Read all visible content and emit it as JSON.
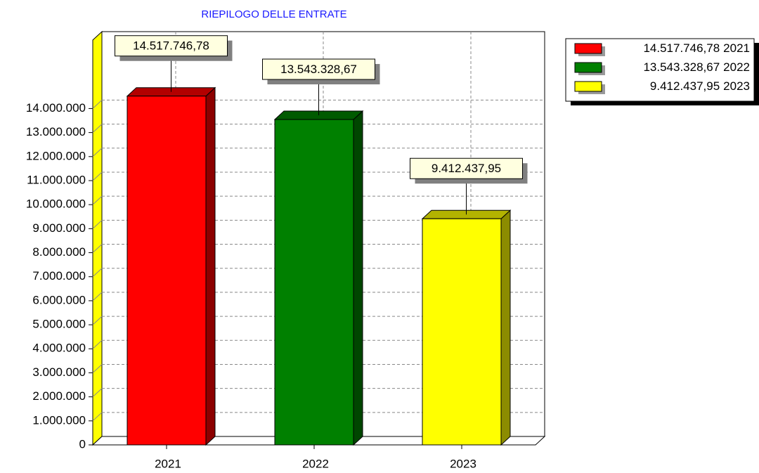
{
  "chart_data": {
    "type": "bar",
    "title": "RIEPILOGO DELLE ENTRATE",
    "categories": [
      "2021",
      "2022",
      "2023"
    ],
    "values": [
      14517746.78,
      13543328.67,
      9412437.95
    ],
    "value_labels": [
      "14.517.746,78",
      "13.543.328,67",
      "9.412.437,95"
    ],
    "colors": [
      "#ff0000",
      "#008000",
      "#ffff00"
    ],
    "ylim": [
      0,
      16850000
    ],
    "yticks": [
      0,
      {
        "value": 1000000,
        "label": "1.000.000"
      },
      {
        "value": 2000000,
        "label": "2.000.000"
      },
      {
        "value": 3000000,
        "label": "3.000.000"
      },
      {
        "value": 4000000,
        "label": "4.000.000"
      },
      {
        "value": 5000000,
        "label": "5.000.000"
      },
      {
        "value": 6000000,
        "label": "6.000.000"
      },
      {
        "value": 7000000,
        "label": "7.000.000"
      },
      {
        "value": 8000000,
        "label": "8.000.000"
      },
      {
        "value": 9000000,
        "label": "9.000.000"
      },
      {
        "value": 10000000,
        "label": "10.000.000"
      },
      {
        "value": 11000000,
        "label": "11.000.000"
      },
      {
        "value": 12000000,
        "label": "12.000.000"
      },
      {
        "value": 13000000,
        "label": "13.000.000"
      },
      {
        "value": 14000000,
        "label": "14.000.000"
      }
    ],
    "grid": true,
    "legend": "top right"
  }
}
